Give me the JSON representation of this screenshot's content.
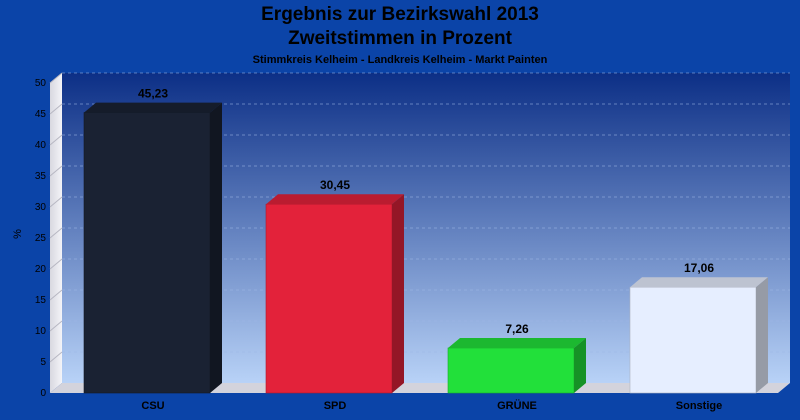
{
  "chart_data": {
    "type": "bar",
    "title": "Ergebnis zur Bezirkswahl 2013",
    "subtitle": "Zweitstimmen in Prozent",
    "subsubtitle": "Stimmkreis Kelheim - Landkreis Kelheim - Markt Painten",
    "ylabel": "%",
    "xlabel": "",
    "ylim": [
      0,
      50
    ],
    "yticks": [
      "0",
      "5",
      "10",
      "15",
      "20",
      "25",
      "30",
      "35",
      "40",
      "45",
      "50"
    ],
    "grid": true,
    "categories": [
      "CSU",
      "SPD",
      "GRÜNE",
      "Sonstige"
    ],
    "values": [
      45.23,
      30.45,
      7.26,
      17.06
    ],
    "value_labels": [
      "45,23",
      "30,45",
      "7,26",
      "17,06"
    ],
    "colors": [
      "#1a2233",
      "#e3223a",
      "#22e03a",
      "#e6eeff"
    ]
  }
}
